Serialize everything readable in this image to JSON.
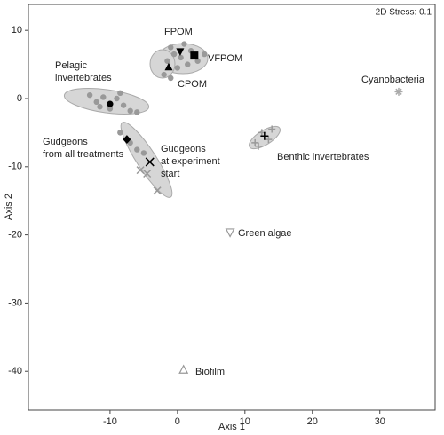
{
  "chart_data": {
    "type": "scatter",
    "annotation": "2D Stress: 0.1",
    "x_label": "Axis 1",
    "y_label": "Axis 2",
    "xlim": [
      -22.1,
      38.2
    ],
    "ylim": [
      -45.7,
      13.8
    ],
    "xticks": [
      -10,
      0,
      10,
      20,
      30
    ],
    "yticks": [
      10,
      0,
      -10,
      -20,
      -30,
      -40
    ],
    "series": [
      {
        "label_lines": [
          "Pelagic",
          "invertebrates"
        ],
        "marker": "circle",
        "color": "#000000",
        "x": -10,
        "y": -0.8,
        "samples": {
          "x": [
            -13,
            -12,
            -11,
            -10,
            -9,
            -8,
            -7,
            -6,
            -11.5,
            -8.5
          ],
          "y": [
            0.5,
            -0.5,
            0.2,
            -1.5,
            0,
            -1,
            -1.8,
            -2,
            -1.2,
            0.8
          ]
        }
      },
      {
        "label_lines": [
          "FPOM"
        ],
        "marker": "tri-down",
        "color": "#000000",
        "x": 0.4,
        "y": 6.9,
        "samples": {
          "x": [
            -1,
            1,
            0.5,
            -0.5
          ],
          "y": [
            7.5,
            8,
            6,
            6.5
          ]
        }
      },
      {
        "label_lines": [
          "VFPOM"
        ],
        "marker": "square",
        "color": "#000000",
        "x": 2.5,
        "y": 6.3,
        "samples": {
          "x": [
            2,
            3,
            4,
            1.5
          ],
          "y": [
            7,
            5.5,
            6.5,
            5
          ]
        }
      },
      {
        "label_lines": [
          "CPOM"
        ],
        "marker": "tri-up",
        "color": "#000000",
        "x": -1.3,
        "y": 4.6,
        "samples": {
          "x": [
            -2,
            -1,
            0,
            -1.5
          ],
          "y": [
            3.5,
            3,
            4.5,
            5.5
          ]
        }
      },
      {
        "label_lines": [
          "Gudgeons",
          "from all treatments"
        ],
        "marker": "diamond",
        "color": "#000000",
        "x": -7.5,
        "y": -6.0,
        "samples": {
          "x": [
            -8.5,
            -7,
            -6,
            -5
          ],
          "y": [
            -5,
            -6.5,
            -7.5,
            -8
          ]
        }
      },
      {
        "label_lines": [
          "Gudgeons",
          "at experiment",
          "start"
        ],
        "marker": "cross",
        "color": "#000000",
        "x": -4.1,
        "y": -9.3,
        "samples": {
          "x": [
            -5.5,
            -4.5,
            -3
          ],
          "y": [
            -10.5,
            -11,
            -13.5
          ]
        }
      },
      {
        "label_lines": [
          "Benthic invertebrates"
        ],
        "marker": "plus",
        "color": "#000000",
        "x": 12.9,
        "y": -5.5,
        "samples": {
          "x": [
            11.5,
            12.5,
            14,
            13.5,
            12
          ],
          "y": [
            -6.5,
            -5,
            -4.5,
            -6,
            -7
          ]
        }
      },
      {
        "label_lines": [
          "Cyanobacteria"
        ],
        "marker": "asterisk",
        "color": "#aaaaaa",
        "x": 32.8,
        "y": 1.0
      },
      {
        "label_lines": [
          "Green algae"
        ],
        "marker": "tri-down-open",
        "color": "#999999",
        "x": 7.8,
        "y": -19.6
      },
      {
        "label_lines": [
          "Biofilm"
        ],
        "marker": "tri-up-open",
        "color": "#999999",
        "x": 0.9,
        "y": -39.8
      }
    ]
  }
}
